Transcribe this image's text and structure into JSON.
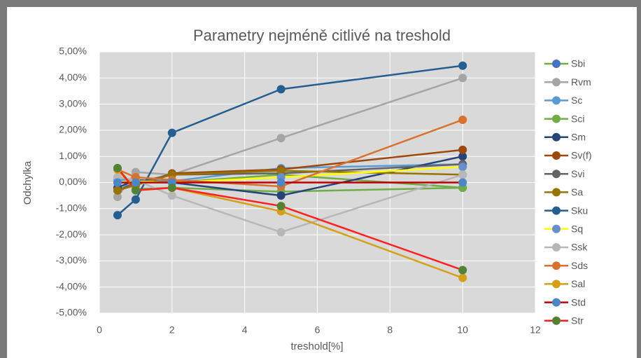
{
  "chart_data": {
    "type": "line",
    "title": "Parametry nejméně citlivé na treshold",
    "x_label": "treshold[%]",
    "y_label": "Odchylka",
    "x": [
      0.5,
      1,
      2,
      5,
      10
    ],
    "xlim": [
      0,
      12
    ],
    "xticks": [
      0,
      2,
      4,
      6,
      8,
      10,
      12
    ],
    "ylim": [
      -5,
      5
    ],
    "yticks": [
      {
        "value": -5,
        "label": "-5,00%"
      },
      {
        "value": -4,
        "label": "-4,00%"
      },
      {
        "value": -3,
        "label": "-3,00%"
      },
      {
        "value": -2,
        "label": "-2,00%"
      },
      {
        "value": -1,
        "label": "-1,00%"
      },
      {
        "value": 0,
        "label": "0,00%"
      },
      {
        "value": 1,
        "label": "1,00%"
      },
      {
        "value": 2,
        "label": "2,00%"
      },
      {
        "value": 3,
        "label": "3,00%"
      },
      {
        "value": 4,
        "label": "4,00%"
      },
      {
        "value": 5,
        "label": "5,00%"
      }
    ],
    "grid": true,
    "legend": "right",
    "series": [
      {
        "name": "Sbi",
        "color": "#70ad47",
        "marker_color": "#4472c4",
        "values": [
          0,
          0,
          0,
          0.3,
          -0.2
        ]
      },
      {
        "name": "Rvm",
        "color": "#a5a5a5",
        "values": [
          -0.55,
          0.4,
          0.3,
          1.7,
          4.0
        ]
      },
      {
        "name": "Sc",
        "color": "#5b9bd5",
        "values": [
          0.1,
          0.1,
          0.05,
          0.55,
          0.7
        ]
      },
      {
        "name": "Sci",
        "color": "#70ad47",
        "values": [
          0.55,
          -0.25,
          -0.2,
          -0.35,
          -0.2
        ]
      },
      {
        "name": "Sm",
        "color": "#264478",
        "values": [
          -0.2,
          0.1,
          0,
          -0.5,
          1.0
        ]
      },
      {
        "name": "Sv(f)",
        "color": "#9e480e",
        "values": [
          -0.3,
          -0.1,
          0.35,
          0.5,
          1.25
        ]
      },
      {
        "name": "Svi",
        "color": "#636363",
        "values": [
          -0.3,
          0,
          0.3,
          0.35,
          0.7
        ]
      },
      {
        "name": "Sa",
        "color": "#997300",
        "values": [
          -0.3,
          -0.1,
          0.3,
          0.45,
          0.3
        ]
      },
      {
        "name": "Sku",
        "color": "#255e91",
        "values": [
          -1.25,
          -0.65,
          1.9,
          3.57,
          4.47
        ]
      },
      {
        "name": "Sq",
        "color": "#ffff00",
        "marker_color": "#698ed0",
        "values": [
          0,
          0.05,
          0,
          0.2,
          0.6
        ]
      },
      {
        "name": "Ssk",
        "color": "#b7b7b7",
        "values": [
          0.2,
          0.1,
          -0.5,
          -1.9,
          0.3
        ]
      },
      {
        "name": "Sds",
        "color": "#d9722e",
        "values": [
          0.5,
          0.2,
          0.1,
          -0.15,
          2.4
        ]
      },
      {
        "name": "Sal",
        "color": "#d4a017",
        "values": [
          0.5,
          -0.3,
          -0.2,
          -1.1,
          -3.65
        ]
      },
      {
        "name": "Std",
        "color": "#c00000",
        "marker_color": "#4a86c8",
        "values": [
          0,
          0,
          0,
          0,
          0
        ]
      },
      {
        "name": "Str",
        "color": "#ff2020",
        "marker_color": "#548235",
        "values": [
          0.55,
          -0.3,
          -0.2,
          -0.9,
          -3.35
        ]
      }
    ]
  }
}
